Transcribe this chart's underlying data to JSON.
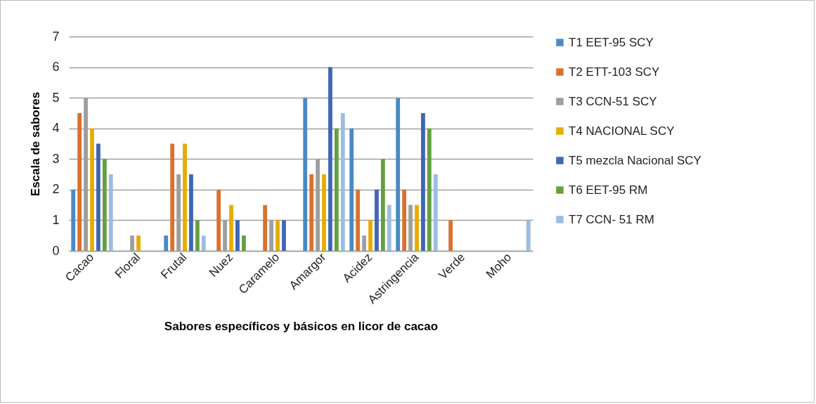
{
  "chart_data": {
    "type": "bar",
    "xlabel": "Sabores específicos y básicos en licor de cacao",
    "ylabel": "Escala de sabores",
    "categories": [
      "Cacao",
      "Floral",
      "Frutal",
      "Nuez",
      "Caramelo",
      "Amargor",
      "Acidez",
      "Astringencia",
      "Verde",
      "Moho"
    ],
    "series": [
      {
        "name": "T1 EET-95 SCY",
        "color": "#4a8ac4",
        "values": [
          2,
          0,
          0.5,
          0,
          0,
          5,
          4,
          5,
          0,
          0
        ]
      },
      {
        "name": "T2 ETT-103 SCY",
        "color": "#d9712f",
        "values": [
          4.5,
          0,
          3.5,
          2,
          1.5,
          2.5,
          2,
          2,
          1,
          0
        ]
      },
      {
        "name": "T3 CCN-51 SCY",
        "color": "#9e9e9e",
        "values": [
          5,
          0.5,
          2.5,
          1,
          1,
          3,
          0.5,
          1.5,
          0,
          0
        ]
      },
      {
        "name": "T4  NACIONAL SCY",
        "color": "#e6ac00",
        "values": [
          4,
          0.5,
          3.5,
          1.5,
          1,
          2.5,
          1,
          1.5,
          0,
          0
        ]
      },
      {
        "name": "T5  mezcla Nacional SCY",
        "color": "#3f66b5",
        "values": [
          3.5,
          0,
          2.5,
          1,
          1,
          6,
          2,
          4.5,
          0,
          0
        ]
      },
      {
        "name": "T6  EET-95 RM",
        "color": "#64a03f",
        "values": [
          3,
          0,
          1,
          0.5,
          0,
          4,
          3,
          4,
          0,
          0
        ]
      },
      {
        "name": "T7 CCN-  51 RM",
        "color": "#9bbde4",
        "values": [
          2.5,
          0,
          0.5,
          0,
          0,
          4.5,
          1.5,
          2.5,
          0,
          1
        ]
      }
    ],
    "ylim": [
      0,
      7
    ],
    "yticks": [
      0,
      1,
      2,
      3,
      4,
      5,
      6,
      7
    ],
    "grid": "y",
    "legend": "right"
  }
}
